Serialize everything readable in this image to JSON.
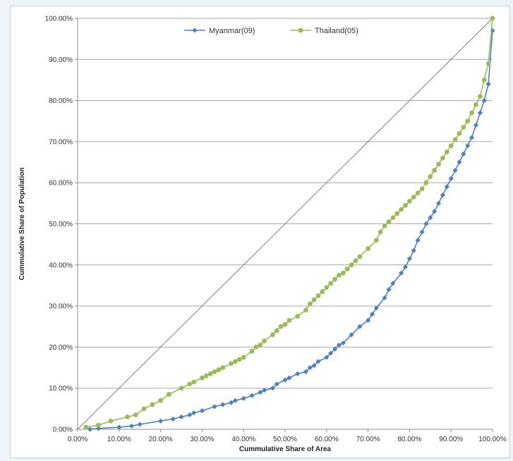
{
  "chart_data": {
    "type": "line",
    "title": "",
    "xlabel": "Cummulative Share of Area",
    "ylabel": "Cummulative Share of Population",
    "xlim": [
      0,
      100
    ],
    "ylim": [
      0,
      100
    ],
    "xticks": [
      "0.00%",
      "10.00%",
      "20.00%",
      "30.00%",
      "40.00%",
      "50.00%",
      "60.00%",
      "70.00%",
      "80.00%",
      "90.00%",
      "100.00%"
    ],
    "yticks": [
      "0.00%",
      "10.00%",
      "20.00%",
      "30.00%",
      "40.00%",
      "50.00%",
      "60.00%",
      "70.00%",
      "80.00%",
      "90.00%",
      "100.00%"
    ],
    "grid": {
      "horizontal": true,
      "vertical": false
    },
    "legend_position": "top-center",
    "equality_line": {
      "x": [
        0,
        100
      ],
      "y": [
        0,
        100
      ],
      "color": "#7f7f7f"
    },
    "series": [
      {
        "name": "Myanmar(09)",
        "color": "#4f81bd",
        "marker": "diamond",
        "x": [
          3,
          5,
          10,
          13,
          15,
          20,
          23,
          25,
          27,
          28,
          30,
          33,
          35,
          37,
          38,
          40,
          42,
          44,
          45,
          47,
          48,
          50,
          51,
          53,
          55,
          56,
          57,
          58,
          60,
          61,
          62,
          63,
          64,
          66,
          68,
          70,
          71,
          72,
          74,
          75,
          76,
          78,
          79,
          80,
          81,
          82,
          83,
          84,
          85,
          86,
          87,
          88,
          89,
          90,
          91,
          92,
          93,
          94,
          95,
          96,
          97,
          98,
          99,
          100
        ],
        "y": [
          0,
          0.2,
          0.5,
          0.8,
          1.2,
          2,
          2.5,
          3,
          3.5,
          4,
          4.5,
          5.5,
          6,
          6.5,
          7,
          7.5,
          8.2,
          9,
          9.5,
          10,
          11,
          12,
          12.5,
          13.5,
          14,
          15,
          15.5,
          16.5,
          17.5,
          18.5,
          19.5,
          20.5,
          21,
          23,
          25,
          26.5,
          28,
          29.5,
          32,
          34,
          35.5,
          38,
          39.5,
          41.5,
          43.5,
          46,
          48,
          50,
          51.5,
          53,
          55,
          57,
          59,
          61,
          63,
          65,
          67,
          69,
          71,
          74,
          77,
          80,
          84,
          97
        ]
      },
      {
        "name": "Thailand(05)",
        "color": "#9bbb59",
        "marker": "circle",
        "x": [
          2,
          5,
          8,
          12,
          14,
          16,
          18,
          20,
          22,
          25,
          27,
          28,
          30,
          31,
          32,
          33,
          34,
          35,
          37,
          38,
          39,
          40,
          42,
          43,
          44,
          45,
          47,
          48,
          49,
          50,
          51,
          53,
          55,
          56,
          57,
          58,
          59,
          60,
          61,
          62,
          63,
          64,
          65,
          66,
          67,
          68,
          70,
          72,
          73,
          74,
          75,
          76,
          77,
          78,
          79,
          80,
          81,
          82,
          83,
          84,
          85,
          86,
          87,
          88,
          89,
          90,
          91,
          92,
          93,
          94,
          95,
          96,
          97,
          98,
          99,
          100
        ],
        "y": [
          0.5,
          1,
          2,
          3,
          3.5,
          5,
          6,
          7,
          8.5,
          10,
          11,
          11.5,
          12.5,
          13,
          13.5,
          14,
          14.5,
          15,
          16,
          16.5,
          17,
          17.5,
          19,
          20,
          20.5,
          21.5,
          23,
          24,
          25,
          25.5,
          26.5,
          27.5,
          29,
          30.5,
          31.5,
          32.5,
          33.5,
          34.5,
          35.5,
          36.5,
          37.5,
          38,
          39,
          40,
          41,
          42,
          44,
          46,
          48,
          49.5,
          50.5,
          51.5,
          52.5,
          53.5,
          54.5,
          55.5,
          56.5,
          57.5,
          58.5,
          60,
          61.5,
          63,
          64.5,
          66,
          67.5,
          69,
          70.5,
          72,
          73.5,
          75,
          77,
          79,
          81,
          85,
          89,
          100
        ]
      }
    ]
  }
}
